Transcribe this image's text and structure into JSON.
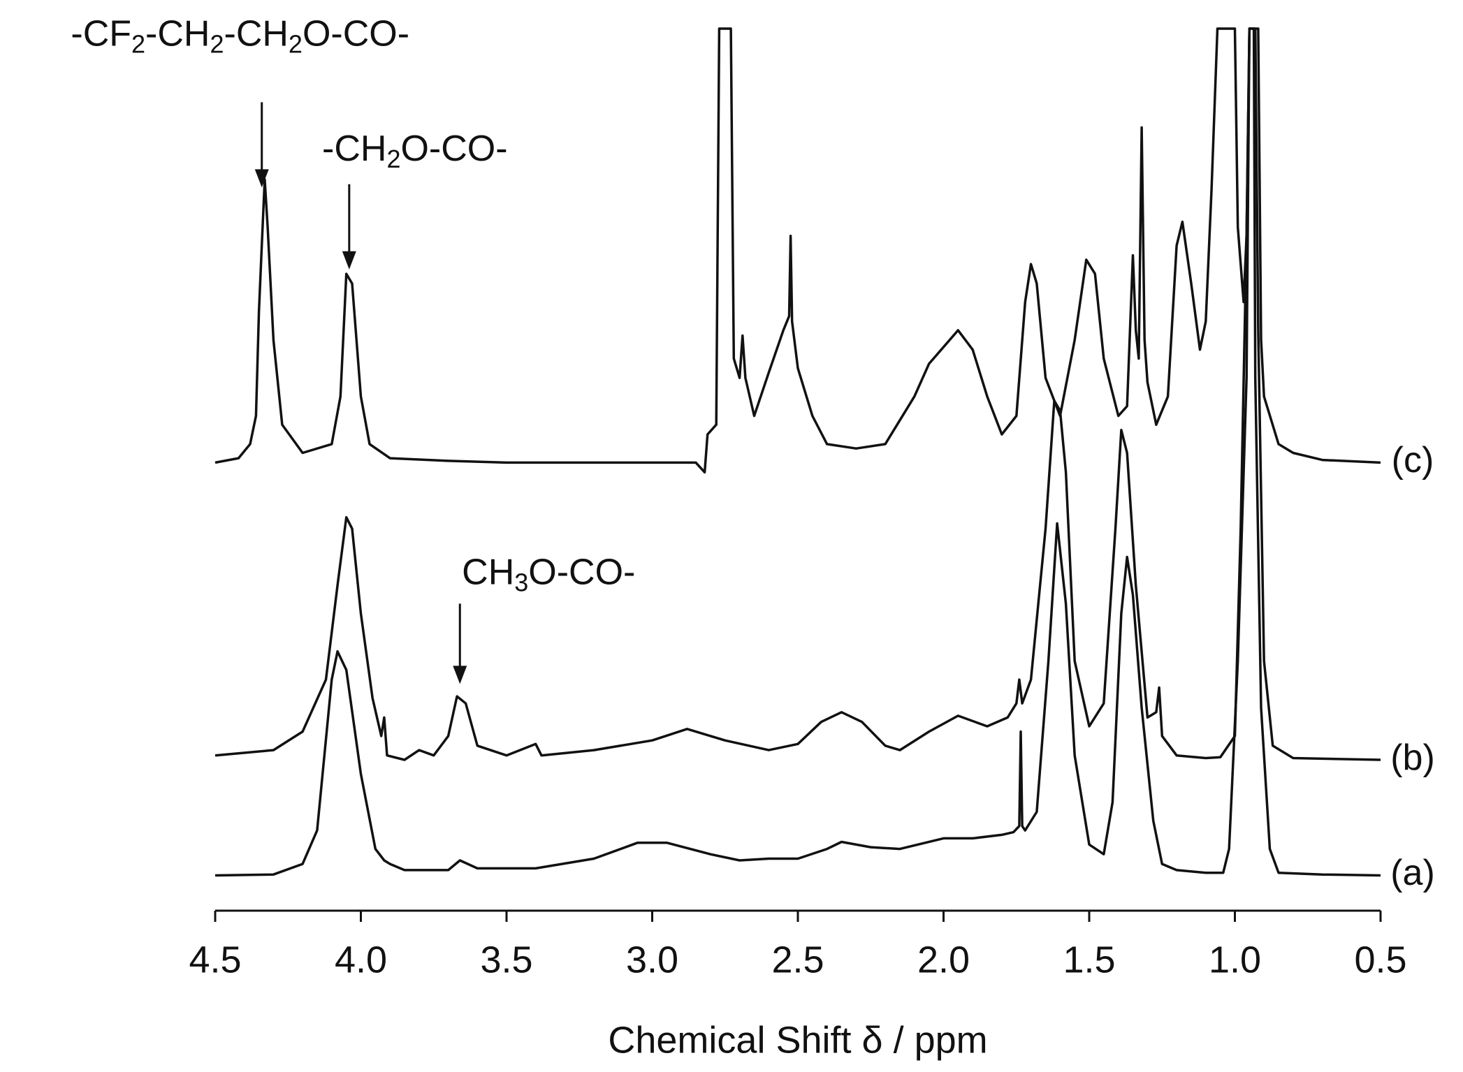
{
  "chart_data": {
    "type": "line",
    "x_label": "Chemical Shift δ / ppm",
    "xlim": [
      4.5,
      0.5
    ],
    "xticks": [
      4.5,
      {
        "value": 4,
        "label": "4.0"
      },
      3.5,
      {
        "value": 3,
        "label": "3.0"
      },
      2.5,
      {
        "value": 2,
        "label": "2.0"
      },
      1.5,
      {
        "value": 1,
        "label": "1.0"
      },
      0.5
    ],
    "ylim": [
      0,
      100
    ],
    "color": "#111111",
    "annotations": [
      {
        "text": "-CF2-CH2-CH2O-CO-",
        "x": 4.34,
        "y": 82.0
      },
      {
        "text": "-CH2O-CO-",
        "x": 4.04,
        "y": 72.7
      },
      {
        "text": "CH3O-CO-",
        "x": 3.66,
        "y": 25.7
      }
    ],
    "series": [
      {
        "name": "(a)",
        "color": "#111111",
        "x": [
          4.5,
          4.3,
          4.2,
          4.15,
          4.1,
          4.08,
          4.05,
          4.0,
          3.95,
          3.92,
          3.9,
          3.85,
          3.7,
          3.66,
          3.6,
          3.4,
          3.2,
          3.05,
          2.95,
          2.8,
          2.7,
          2.6,
          2.5,
          2.4,
          2.35,
          2.25,
          2.15,
          2.0,
          1.9,
          1.8,
          1.76,
          1.74,
          1.735,
          1.73,
          1.72,
          1.68,
          1.64,
          1.61,
          1.58,
          1.55,
          1.5,
          1.45,
          1.42,
          1.39,
          1.37,
          1.35,
          1.32,
          1.28,
          1.25,
          1.2,
          1.1,
          1.04,
          1.02,
          0.99,
          0.96,
          0.95,
          0.935,
          0.93,
          0.91,
          0.88,
          0.85,
          0.7,
          0.5
        ],
        "values": [
          4.0,
          4.1,
          5.3,
          9.1,
          26.2,
          29.4,
          27.3,
          15.5,
          7.0,
          5.7,
          5.3,
          4.6,
          4.6,
          5.7,
          4.8,
          4.8,
          5.9,
          7.7,
          7.7,
          6.4,
          5.7,
          5.9,
          5.9,
          7.0,
          7.8,
          7.2,
          7.0,
          8.2,
          8.2,
          8.6,
          8.9,
          9.6,
          20.3,
          9.6,
          9.1,
          11.2,
          28.3,
          43.9,
          34.8,
          17.6,
          7.5,
          6.4,
          12.3,
          33.7,
          40.1,
          35.8,
          23.0,
          10.2,
          5.3,
          4.6,
          4.3,
          4.3,
          7.0,
          28.3,
          60.4,
          100,
          100,
          60.4,
          23.0,
          7.0,
          4.3,
          4.1,
          4.0
        ]
      },
      {
        "name": "(b)",
        "color": "#111111",
        "x": [
          4.5,
          4.3,
          4.2,
          4.12,
          4.08,
          4.05,
          4.03,
          4.0,
          3.96,
          3.93,
          3.92,
          3.91,
          3.85,
          3.8,
          3.75,
          3.7,
          3.67,
          3.64,
          3.6,
          3.5,
          3.4,
          3.38,
          3.2,
          3.0,
          2.88,
          2.75,
          2.6,
          2.5,
          2.42,
          2.35,
          2.28,
          2.2,
          2.15,
          2.05,
          1.95,
          1.85,
          1.78,
          1.75,
          1.74,
          1.73,
          1.7,
          1.65,
          1.62,
          1.6,
          1.58,
          1.55,
          1.5,
          1.45,
          1.41,
          1.39,
          1.37,
          1.34,
          1.3,
          1.27,
          1.26,
          1.25,
          1.2,
          1.1,
          1.05,
          1.0,
          0.98,
          0.96,
          0.95,
          0.93,
          0.92,
          0.9,
          0.87,
          0.8,
          0.5
        ],
        "values": [
          17.6,
          18.2,
          20.3,
          26.2,
          36.9,
          44.6,
          43.3,
          33.7,
          24.1,
          19.8,
          21.9,
          17.6,
          17.1,
          18.2,
          17.6,
          19.8,
          24.3,
          23.5,
          18.7,
          17.6,
          18.9,
          17.6,
          18.2,
          19.3,
          20.6,
          19.3,
          18.2,
          18.9,
          21.4,
          22.5,
          21.4,
          18.7,
          18.2,
          20.3,
          22.1,
          20.9,
          21.9,
          23.5,
          26.2,
          23.5,
          26.2,
          43.3,
          57.8,
          56.7,
          49.7,
          28.3,
          20.9,
          23.5,
          43.3,
          54.5,
          51.9,
          36.9,
          21.9,
          22.5,
          25.3,
          19.8,
          17.6,
          17.3,
          17.4,
          19.8,
          43.3,
          76.5,
          100,
          100,
          65.8,
          28.3,
          18.7,
          17.3,
          17.1
        ]
      },
      {
        "name": "(c)",
        "color": "#111111",
        "x": [
          4.5,
          4.42,
          4.38,
          4.36,
          4.35,
          4.34,
          4.33,
          4.32,
          4.3,
          4.27,
          4.2,
          4.1,
          4.07,
          4.05,
          4.03,
          4.0,
          3.97,
          3.9,
          3.7,
          3.5,
          3.2,
          3.0,
          2.85,
          2.82,
          2.81,
          2.78,
          2.77,
          2.73,
          2.72,
          2.7,
          2.69,
          2.68,
          2.65,
          2.6,
          2.55,
          2.53,
          2.525,
          2.52,
          2.5,
          2.45,
          2.4,
          2.3,
          2.2,
          2.1,
          2.05,
          1.95,
          1.9,
          1.85,
          1.8,
          1.75,
          1.72,
          1.7,
          1.68,
          1.65,
          1.6,
          1.55,
          1.51,
          1.48,
          1.45,
          1.4,
          1.37,
          1.35,
          1.34,
          1.33,
          1.32,
          1.31,
          1.3,
          1.27,
          1.23,
          1.2,
          1.18,
          1.15,
          1.12,
          1.1,
          1.08,
          1.06,
          1.0,
          0.99,
          0.97,
          0.96,
          0.95,
          0.92,
          0.91,
          0.9,
          0.85,
          0.8,
          0.7,
          0.5
        ],
        "values": [
          50.8,
          51.3,
          52.9,
          56.1,
          67.9,
          75.4,
          82.9,
          77.5,
          64.7,
          55.1,
          51.9,
          52.9,
          58.3,
          72.2,
          71.1,
          58.3,
          52.9,
          51.3,
          51.0,
          50.8,
          50.8,
          50.8,
          50.8,
          49.7,
          54.0,
          55.1,
          100,
          100,
          62.6,
          60.4,
          65.2,
          60.4,
          56.1,
          61.0,
          65.8,
          67.4,
          76.5,
          66.8,
          61.5,
          56.1,
          52.9,
          52.4,
          52.9,
          58.3,
          62.0,
          65.8,
          63.6,
          58.3,
          54.0,
          56.1,
          69.0,
          73.3,
          71.1,
          60.4,
          56.1,
          64.7,
          73.8,
          72.2,
          62.6,
          56.1,
          57.2,
          74.3,
          65.8,
          62.6,
          88.8,
          64.7,
          59.9,
          55.1,
          58.3,
          75.4,
          78.1,
          71.1,
          63.6,
          66.8,
          81.8,
          100,
          100,
          77.5,
          69.0,
          76.5,
          100,
          100,
          64.7,
          58.3,
          52.9,
          51.9,
          51.1,
          50.8
        ]
      }
    ]
  }
}
